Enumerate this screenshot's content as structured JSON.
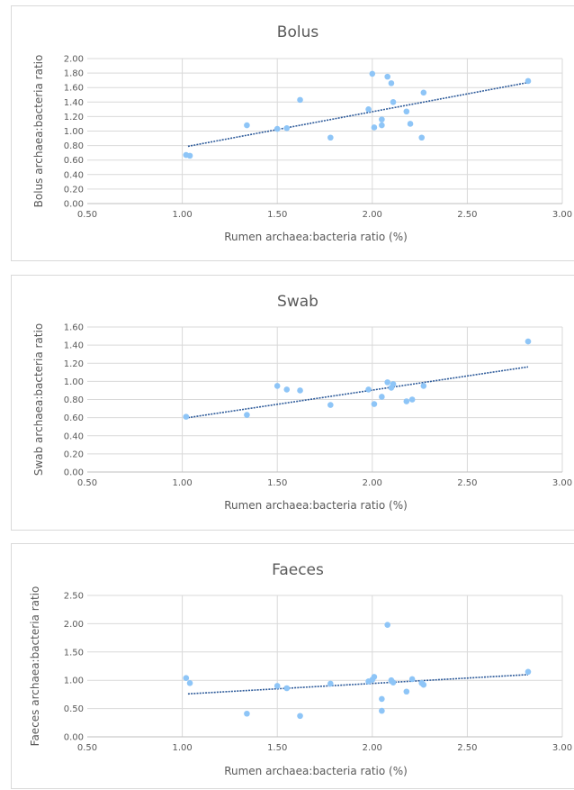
{
  "chart_data": [
    {
      "type": "scatter",
      "title": "Bolus",
      "xlabel": "Rumen archaea:bacteria ratio (%)",
      "ylabel": "Bolus archaea:bacteria ratio",
      "xlim": [
        0.5,
        3.0
      ],
      "ylim": [
        0.0,
        2.0
      ],
      "x_ticks": [
        "0.50",
        "1.00",
        "1.50",
        "2.00",
        "2.50",
        "3.00"
      ],
      "y_ticks": [
        "0.00",
        "0.20",
        "0.40",
        "0.60",
        "0.80",
        "1.00",
        "1.20",
        "1.40",
        "1.60",
        "1.80",
        "2.00"
      ],
      "grid": true,
      "trendline": {
        "style": "linear",
        "from": [
          1.03,
          0.79
        ],
        "to": [
          2.82,
          1.67
        ]
      },
      "series": [
        {
          "points": [
            [
              1.02,
              0.67
            ],
            [
              1.04,
              0.66
            ],
            [
              1.34,
              1.08
            ],
            [
              1.5,
              1.03
            ],
            [
              1.55,
              1.04
            ],
            [
              1.62,
              1.43
            ],
            [
              1.78,
              0.91
            ],
            [
              1.98,
              1.3
            ],
            [
              2.0,
              1.79
            ],
            [
              2.01,
              1.05
            ],
            [
              2.05,
              1.08
            ],
            [
              2.05,
              1.16
            ],
            [
              2.08,
              1.75
            ],
            [
              2.1,
              1.66
            ],
            [
              2.11,
              1.4
            ],
            [
              2.18,
              1.27
            ],
            [
              2.2,
              1.1
            ],
            [
              2.26,
              0.91
            ],
            [
              2.27,
              1.53
            ],
            [
              2.82,
              1.69
            ]
          ]
        }
      ]
    },
    {
      "type": "scatter",
      "title": "Swab",
      "xlabel": "Rumen archaea:bacteria ratio (%)",
      "ylabel": "Swab  archaea:bacteria ratio",
      "xlim": [
        0.5,
        3.0
      ],
      "ylim": [
        0.0,
        1.6
      ],
      "x_ticks": [
        "0.50",
        "1.00",
        "1.50",
        "2.00",
        "2.50",
        "3.00"
      ],
      "y_ticks": [
        "0.00",
        "0.20",
        "0.40",
        "0.60",
        "0.80",
        "1.00",
        "1.20",
        "1.40",
        "1.60"
      ],
      "grid": true,
      "trendline": {
        "style": "linear",
        "from": [
          1.03,
          0.6
        ],
        "to": [
          2.82,
          1.16
        ]
      },
      "series": [
        {
          "points": [
            [
              1.02,
              0.61
            ],
            [
              1.34,
              0.63
            ],
            [
              1.5,
              0.95
            ],
            [
              1.55,
              0.91
            ],
            [
              1.62,
              0.9
            ],
            [
              1.78,
              0.74
            ],
            [
              1.98,
              0.91
            ],
            [
              2.01,
              0.75
            ],
            [
              2.05,
              0.83
            ],
            [
              2.08,
              0.99
            ],
            [
              2.1,
              0.93
            ],
            [
              2.11,
              0.97
            ],
            [
              2.18,
              0.78
            ],
            [
              2.21,
              0.8
            ],
            [
              2.27,
              0.95
            ],
            [
              2.82,
              1.44
            ]
          ]
        }
      ]
    },
    {
      "type": "scatter",
      "title": "Faeces",
      "xlabel": "Rumen archaea:bacteria ratio (%)",
      "ylabel": "Faeces archaea:bacteria ratio",
      "xlim": [
        0.5,
        3.0
      ],
      "ylim": [
        0.0,
        2.5
      ],
      "x_ticks": [
        "0.50",
        "1.00",
        "1.50",
        "2.00",
        "2.50",
        "3.00"
      ],
      "y_ticks": [
        "0.00",
        "0.50",
        "1.00",
        "1.50",
        "2.00",
        "2.50"
      ],
      "grid": true,
      "trendline": {
        "style": "linear",
        "from": [
          1.03,
          0.76
        ],
        "to": [
          2.82,
          1.1
        ]
      },
      "series": [
        {
          "points": [
            [
              1.02,
              1.04
            ],
            [
              1.04,
              0.95
            ],
            [
              1.34,
              0.41
            ],
            [
              1.5,
              0.9
            ],
            [
              1.55,
              0.86
            ],
            [
              1.62,
              0.37
            ],
            [
              1.78,
              0.94
            ],
            [
              1.98,
              0.98
            ],
            [
              2.0,
              1.01
            ],
            [
              2.01,
              1.06
            ],
            [
              2.05,
              0.67
            ],
            [
              2.05,
              0.46
            ],
            [
              2.08,
              1.98
            ],
            [
              2.1,
              1.0
            ],
            [
              2.11,
              0.96
            ],
            [
              2.18,
              0.8
            ],
            [
              2.21,
              1.02
            ],
            [
              2.26,
              0.95
            ],
            [
              2.27,
              0.92
            ],
            [
              2.82,
              1.15
            ]
          ]
        }
      ]
    }
  ]
}
